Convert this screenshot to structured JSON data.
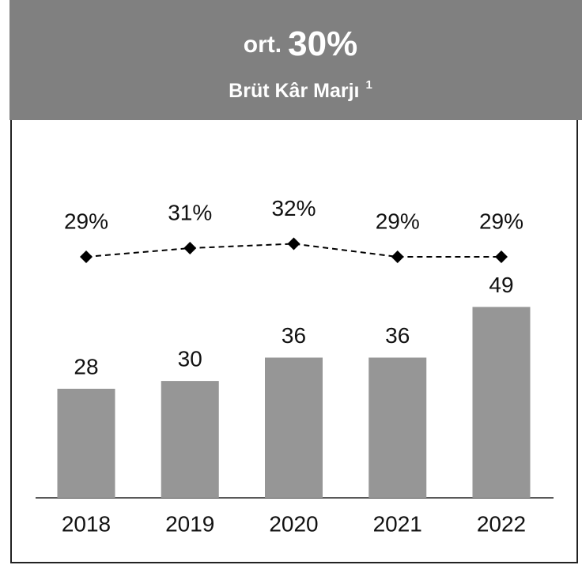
{
  "chart_data": {
    "type": "bar_line",
    "header": {
      "prefix": "ort.",
      "value": "30%",
      "title": "Brüt Kâr Marjı",
      "footnote": "1"
    },
    "categories": [
      "2018",
      "2019",
      "2020",
      "2021",
      "2022"
    ],
    "values": [
      28,
      30,
      36,
      36,
      49
    ],
    "color": "#969696",
    "line": {
      "values": [
        29,
        31,
        32,
        29,
        29
      ],
      "value_labels": [
        "29%",
        "31%",
        "32%",
        "29%",
        "29%"
      ],
      "color": "#000000"
    }
  }
}
